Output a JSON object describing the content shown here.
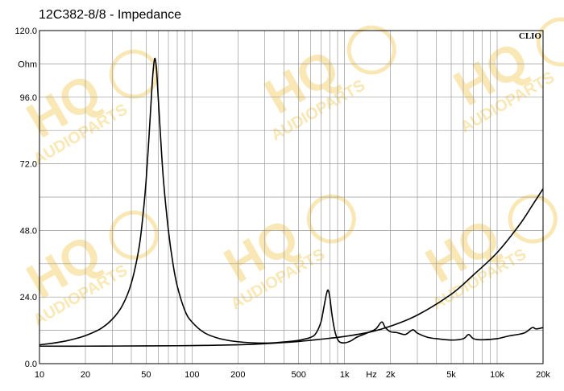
{
  "chart_data": {
    "type": "line",
    "title": "12C382-8/8 - Impedance",
    "brand": "CLIO",
    "watermark": {
      "main": "HQ",
      "sub": "AUDIOPARTS",
      "color": "#f5d67a"
    },
    "xscale": "log",
    "xlim": [
      10,
      20000
    ],
    "ylim": [
      0,
      120
    ],
    "xunit": "Hz",
    "yunit": "Ohm",
    "yticks": [
      {
        "v": 0,
        "label": "0.0"
      },
      {
        "v": 24,
        "label": "24.0"
      },
      {
        "v": 48,
        "label": "48.0"
      },
      {
        "v": 72,
        "label": "72.0"
      },
      {
        "v": 96,
        "label": "96.0"
      },
      {
        "v": 120,
        "label": "120.0"
      }
    ],
    "xticks": [
      {
        "v": 10,
        "label": "10"
      },
      {
        "v": 20,
        "label": "20"
      },
      {
        "v": 50,
        "label": "50"
      },
      {
        "v": 100,
        "label": "100"
      },
      {
        "v": 200,
        "label": "200"
      },
      {
        "v": 500,
        "label": "500"
      },
      {
        "v": 1000,
        "label": "1k"
      },
      {
        "v": 2000,
        "label": "2k"
      },
      {
        "v": 5000,
        "label": "5k"
      },
      {
        "v": 10000,
        "label": "10k"
      },
      {
        "v": 20000,
        "label": "20k"
      }
    ],
    "grid": true,
    "series": [
      {
        "color": "#000000",
        "points": [
          [
            10,
            6.8
          ],
          [
            12,
            7.3
          ],
          [
            15,
            8.2
          ],
          [
            18,
            9.3
          ],
          [
            20,
            10.1
          ],
          [
            25,
            12.5
          ],
          [
            30,
            16
          ],
          [
            35,
            21
          ],
          [
            40,
            29
          ],
          [
            45,
            42
          ],
          [
            48,
            55
          ],
          [
            50,
            66
          ],
          [
            52,
            80
          ],
          [
            54,
            95
          ],
          [
            55.5,
            105
          ],
          [
            57,
            110
          ],
          [
            58.5,
            106
          ],
          [
            60,
            96
          ],
          [
            62,
            83
          ],
          [
            65,
            66
          ],
          [
            70,
            48
          ],
          [
            75,
            36
          ],
          [
            80,
            28
          ],
          [
            90,
            19
          ],
          [
            100,
            15
          ],
          [
            120,
            11.2
          ],
          [
            150,
            9.1
          ],
          [
            200,
            7.9
          ],
          [
            300,
            7.4
          ],
          [
            400,
            7.8
          ],
          [
            500,
            8.4
          ],
          [
            600,
            9.5
          ],
          [
            650,
            11
          ],
          [
            700,
            15
          ],
          [
            730,
            20
          ],
          [
            760,
            25
          ],
          [
            780,
            26.5
          ],
          [
            800,
            24
          ],
          [
            830,
            17
          ],
          [
            870,
            11
          ],
          [
            920,
            8
          ],
          [
            1000,
            7.5
          ],
          [
            1100,
            8.2
          ],
          [
            1200,
            9.5
          ],
          [
            1400,
            11
          ],
          [
            1600,
            12.5
          ],
          [
            1750,
            15
          ],
          [
            1850,
            13
          ],
          [
            2000,
            11.5
          ],
          [
            2200,
            11.2
          ],
          [
            2500,
            10.5
          ],
          [
            2800,
            12.2
          ],
          [
            3000,
            11
          ],
          [
            3500,
            9.5
          ],
          [
            4000,
            9
          ],
          [
            5000,
            8.5
          ],
          [
            6000,
            9
          ],
          [
            6500,
            10.5
          ],
          [
            7000,
            9
          ],
          [
            8000,
            8.6
          ],
          [
            10000,
            9
          ],
          [
            12000,
            10
          ],
          [
            15000,
            11
          ],
          [
            17000,
            13
          ],
          [
            18000,
            12.5
          ],
          [
            20000,
            13
          ]
        ]
      },
      {
        "color": "#000000",
        "points": [
          [
            10,
            6.3
          ],
          [
            20,
            6.3
          ],
          [
            50,
            6.4
          ],
          [
            100,
            6.5
          ],
          [
            200,
            6.8
          ],
          [
            300,
            7.2
          ],
          [
            500,
            8
          ],
          [
            700,
            8.8
          ],
          [
            1000,
            9.8
          ],
          [
            1500,
            11.5
          ],
          [
            2000,
            13.5
          ],
          [
            3000,
            17.5
          ],
          [
            5000,
            25
          ],
          [
            7000,
            32
          ],
          [
            10000,
            40
          ],
          [
            14000,
            50
          ],
          [
            17000,
            57
          ],
          [
            20000,
            63
          ]
        ]
      }
    ]
  }
}
